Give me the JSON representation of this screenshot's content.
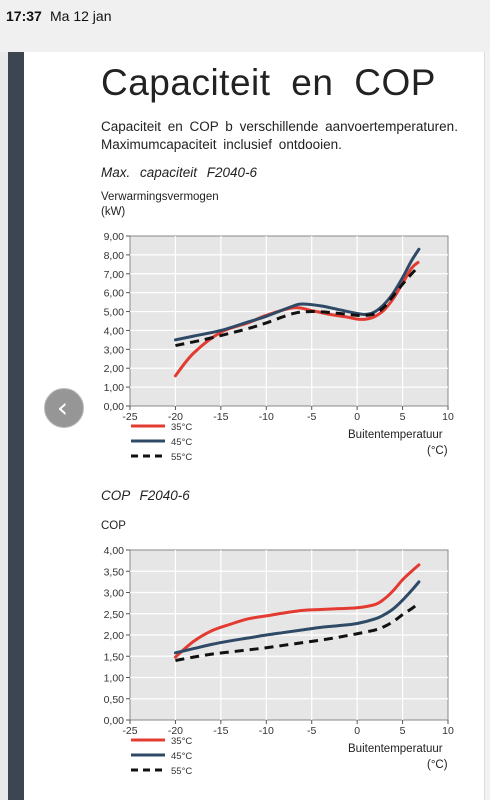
{
  "status_bar": {
    "time": "17:37",
    "date": "Ma 12 jan"
  },
  "document": {
    "title": "Capaciteit en COP",
    "intro": "Capaciteit en COP b verschillende aanvoertemperatu­ren. Maximumcapaciteit inclusief ontdooien.",
    "captions": [
      "Max. capaciteit F2040-6",
      "COP F2040-6"
    ],
    "y_titles": [
      "Verwarmingsvermogen\n(kW)",
      "COP"
    ]
  },
  "colors": {
    "accent_red": "#e33b32",
    "accent_blue": "#2f4a66",
    "dark_dashed": "#111111",
    "plot_bg": "#e6e6e6"
  },
  "icons": {
    "back_button": "chevron-left-icon"
  },
  "chart_data": [
    {
      "type": "line",
      "ylabel": "Verwarmingsvermogen (kW)",
      "xlabel": "Buitentemperatuur (°C)",
      "xlim": [
        -25,
        10
      ],
      "ylim": [
        0,
        9
      ],
      "x_ticks": [
        "-25",
        "-20",
        "-15",
        "-10",
        "-5",
        "0",
        "5",
        "10"
      ],
      "y_ticks": [
        "0,00",
        "1,00",
        "2,00",
        "3,00",
        "4,00",
        "5,00",
        "6,00",
        "7,00",
        "8,00",
        "9,00"
      ],
      "grid": true,
      "legend_position": "bottom-left",
      "series": [
        {
          "name": "35°C",
          "color": "#e33b32",
          "dash": false,
          "points": [
            [
              -20,
              1.6
            ],
            [
              -18,
              2.8
            ],
            [
              -15,
              3.9
            ],
            [
              -12,
              4.4
            ],
            [
              -10,
              4.8
            ],
            [
              -7,
              5.2
            ],
            [
              -5,
              5.05
            ],
            [
              -3,
              4.85
            ],
            [
              -1,
              4.7
            ],
            [
              0,
              4.6
            ],
            [
              1,
              4.6
            ],
            [
              2,
              4.75
            ],
            [
              3,
              5.1
            ],
            [
              4,
              5.7
            ],
            [
              5,
              6.5
            ],
            [
              6,
              7.3
            ],
            [
              6.7,
              7.6
            ]
          ]
        },
        {
          "name": "45°C",
          "color": "#2f4a66",
          "dash": false,
          "points": [
            [
              -20,
              3.5
            ],
            [
              -18,
              3.7
            ],
            [
              -15,
              4.0
            ],
            [
              -12,
              4.45
            ],
            [
              -10,
              4.75
            ],
            [
              -7,
              5.3
            ],
            [
              -6,
              5.4
            ],
            [
              -4,
              5.3
            ],
            [
              -2,
              5.1
            ],
            [
              0,
              4.9
            ],
            [
              1,
              4.85
            ],
            [
              2,
              5.0
            ],
            [
              3,
              5.4
            ],
            [
              4,
              6.0
            ],
            [
              5,
              6.8
            ],
            [
              6,
              7.7
            ],
            [
              6.8,
              8.3
            ]
          ]
        },
        {
          "name": "55°C",
          "color": "#111111",
          "dash": true,
          "points": [
            [
              -20,
              3.2
            ],
            [
              -17,
              3.5
            ],
            [
              -14,
              3.85
            ],
            [
              -12,
              4.1
            ],
            [
              -10,
              4.4
            ],
            [
              -7,
              4.9
            ],
            [
              -5,
              5.0
            ],
            [
              -3,
              4.95
            ],
            [
              -1,
              4.85
            ],
            [
              0,
              4.8
            ],
            [
              1,
              4.8
            ],
            [
              2,
              4.9
            ],
            [
              3,
              5.25
            ],
            [
              4,
              5.85
            ],
            [
              5,
              6.45
            ],
            [
              6,
              7.0
            ],
            [
              6.8,
              7.4
            ]
          ]
        }
      ]
    },
    {
      "type": "line",
      "ylabel": "COP",
      "xlabel": "Buitentemperatuur (°C)",
      "xlim": [
        -25,
        10
      ],
      "ylim": [
        0,
        4
      ],
      "x_ticks": [
        "-25",
        "-20",
        "-15",
        "-10",
        "-5",
        "0",
        "5",
        "10"
      ],
      "y_ticks": [
        "0,00",
        "0,50",
        "1,00",
        "1,50",
        "2,00",
        "2,50",
        "3,00",
        "3,50",
        "4,00"
      ],
      "grid": true,
      "legend_position": "bottom-left",
      "series": [
        {
          "name": "35°C",
          "color": "#e33b32",
          "dash": false,
          "points": [
            [
              -20,
              1.48
            ],
            [
              -18,
              1.85
            ],
            [
              -16,
              2.1
            ],
            [
              -14,
              2.25
            ],
            [
              -12,
              2.38
            ],
            [
              -10,
              2.45
            ],
            [
              -8,
              2.52
            ],
            [
              -6,
              2.58
            ],
            [
              -4,
              2.6
            ],
            [
              -2,
              2.62
            ],
            [
              0,
              2.64
            ],
            [
              2,
              2.72
            ],
            [
              3,
              2.85
            ],
            [
              4,
              3.05
            ],
            [
              5,
              3.3
            ],
            [
              6,
              3.5
            ],
            [
              6.8,
              3.65
            ]
          ]
        },
        {
          "name": "45°C",
          "color": "#2f4a66",
          "dash": false,
          "points": [
            [
              -20,
              1.58
            ],
            [
              -18,
              1.68
            ],
            [
              -16,
              1.78
            ],
            [
              -14,
              1.86
            ],
            [
              -12,
              1.93
            ],
            [
              -10,
              2.0
            ],
            [
              -8,
              2.06
            ],
            [
              -6,
              2.12
            ],
            [
              -4,
              2.18
            ],
            [
              -2,
              2.22
            ],
            [
              0,
              2.27
            ],
            [
              2,
              2.38
            ],
            [
              3,
              2.48
            ],
            [
              4,
              2.62
            ],
            [
              5,
              2.82
            ],
            [
              6,
              3.05
            ],
            [
              6.8,
              3.25
            ]
          ]
        },
        {
          "name": "55°C",
          "color": "#111111",
          "dash": true,
          "points": [
            [
              -20,
              1.4
            ],
            [
              -18,
              1.48
            ],
            [
              -16,
              1.55
            ],
            [
              -14,
              1.6
            ],
            [
              -12,
              1.65
            ],
            [
              -10,
              1.7
            ],
            [
              -8,
              1.76
            ],
            [
              -6,
              1.82
            ],
            [
              -4,
              1.88
            ],
            [
              -2,
              1.95
            ],
            [
              0,
              2.03
            ],
            [
              2,
              2.12
            ],
            [
              3,
              2.2
            ],
            [
              4,
              2.32
            ],
            [
              5,
              2.48
            ],
            [
              6,
              2.62
            ],
            [
              6.8,
              2.75
            ]
          ]
        }
      ]
    }
  ]
}
